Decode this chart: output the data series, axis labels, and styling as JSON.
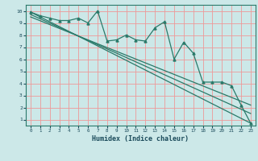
{
  "title": "",
  "xlabel": "Humidex (Indice chaleur)",
  "bg_color": "#cce8e8",
  "grid_color": "#ee9999",
  "line_color": "#2a7a6a",
  "xlim": [
    -0.5,
    23.5
  ],
  "ylim": [
    0.5,
    10.5
  ],
  "xticks": [
    0,
    1,
    2,
    3,
    4,
    5,
    6,
    7,
    8,
    9,
    10,
    11,
    12,
    13,
    14,
    15,
    16,
    17,
    18,
    19,
    20,
    21,
    22,
    23
  ],
  "yticks": [
    1,
    2,
    3,
    4,
    5,
    6,
    7,
    8,
    9,
    10
  ],
  "line1": {
    "x": [
      0,
      1,
      2,
      3,
      4,
      5,
      6,
      7,
      8,
      9,
      10,
      11,
      12,
      13,
      14,
      15,
      16,
      17,
      18,
      19,
      20,
      21,
      22,
      23
    ],
    "y": [
      9.9,
      9.6,
      9.4,
      9.2,
      9.2,
      9.4,
      9.0,
      10.0,
      7.5,
      7.6,
      8.0,
      7.6,
      7.5,
      8.6,
      9.1,
      6.0,
      7.4,
      6.5,
      4.1,
      4.1,
      4.1,
      3.8,
      2.2,
      0.7
    ]
  },
  "line2": {
    "x": [
      0,
      23
    ],
    "y": [
      9.9,
      0.7
    ]
  },
  "line3": {
    "x": [
      0,
      23
    ],
    "y": [
      9.7,
      1.5
    ]
  },
  "line4": {
    "x": [
      0,
      23
    ],
    "y": [
      9.5,
      2.2
    ]
  }
}
